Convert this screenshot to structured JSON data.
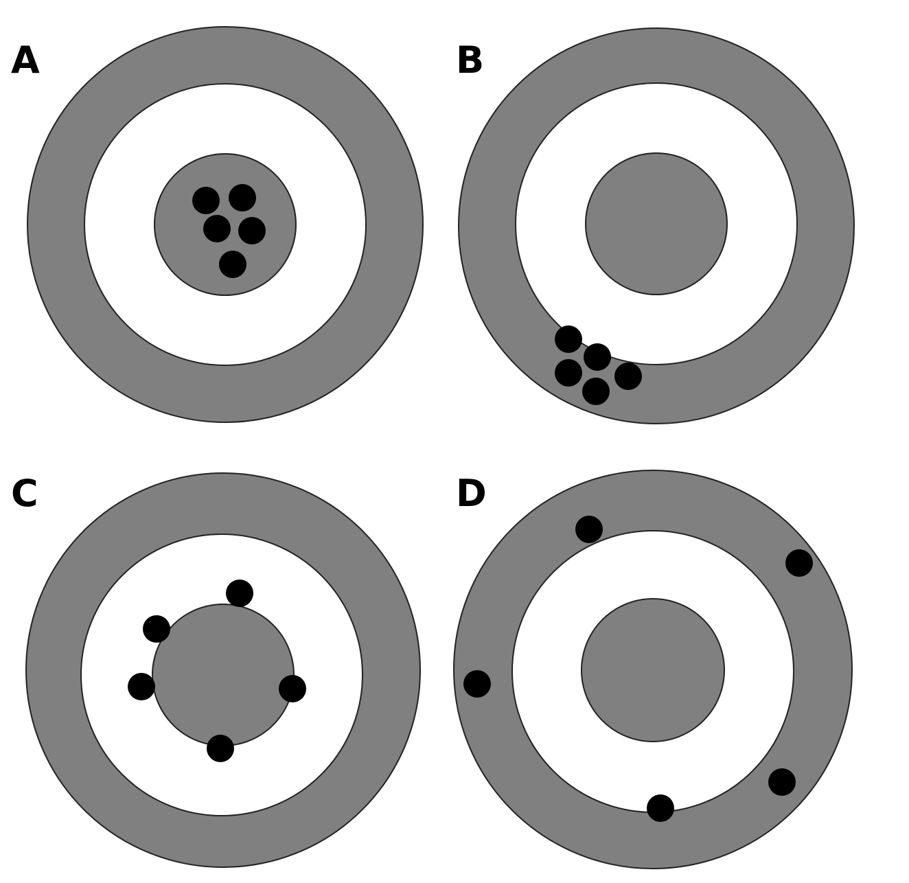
{
  "colors": {
    "ring_gray": "#808080",
    "ring_white": "#ffffff",
    "shot": "#000000",
    "outline": "#222222"
  },
  "panels": [
    {
      "label": "A",
      "shots": 5
    },
    {
      "label": "B",
      "shots": 5
    },
    {
      "label": "C",
      "shots": 5
    },
    {
      "label": "D",
      "shots": 5
    }
  ]
}
